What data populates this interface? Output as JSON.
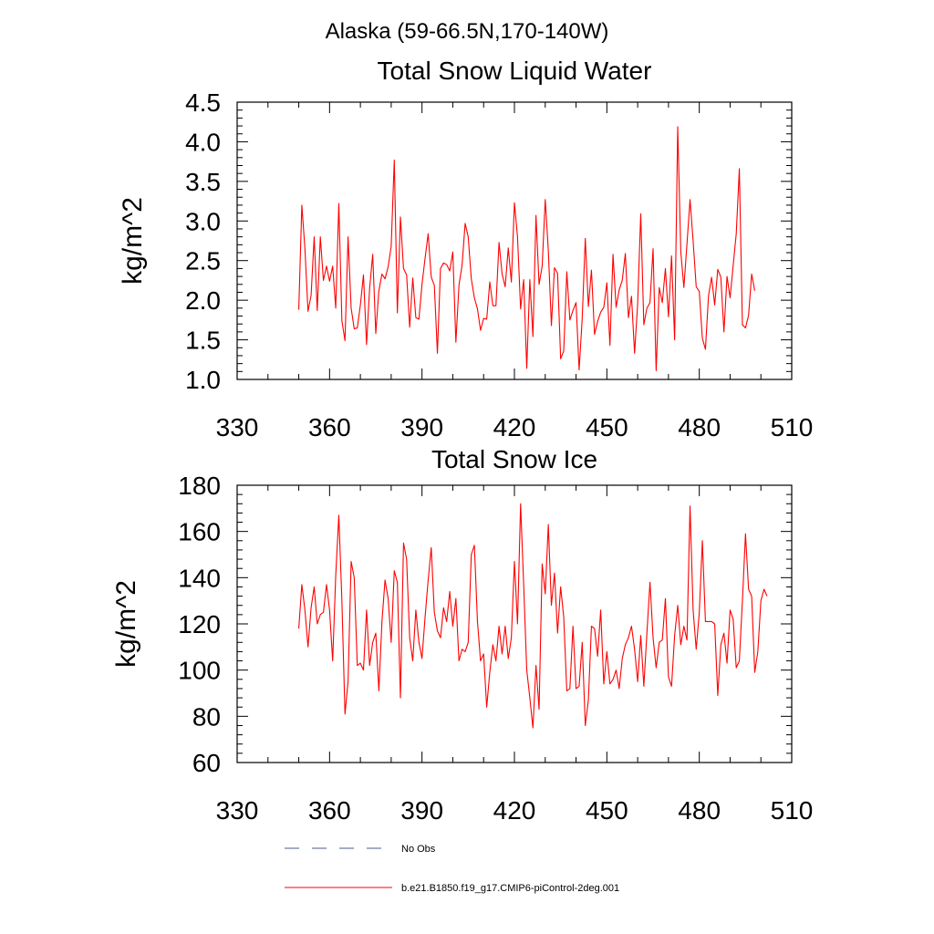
{
  "figure_title": "Alaska (59-66.5N,170-140W)",
  "chart_data": [
    {
      "type": "line",
      "title": "Total Snow Liquid Water",
      "xlabel": "",
      "ylabel": "kg/m^2",
      "xlim": [
        330,
        510
      ],
      "ylim": [
        1.0,
        4.5
      ],
      "xticks": [
        330,
        360,
        390,
        420,
        450,
        480,
        510
      ],
      "xtick_labels": [
        "330",
        "360",
        "390",
        "420",
        "450",
        "480",
        "510"
      ],
      "yticks": [
        1.0,
        1.5,
        2.0,
        2.5,
        3.0,
        3.5,
        4.0,
        4.5
      ],
      "ytick_labels": [
        "1.0",
        "1.5",
        "2.0",
        "2.5",
        "3.0",
        "3.5",
        "4.0",
        "4.5"
      ],
      "grid": false,
      "series": [
        {
          "name": "b.e21.B1850.f19_g17.CMIP6-piControl-2deg.001",
          "color": "#ff0000",
          "x_start": 350,
          "x_step": 1,
          "values": [
            1.88,
            3.2,
            2.65,
            1.86,
            2.06,
            2.8,
            1.87,
            2.8,
            2.25,
            2.43,
            2.24,
            2.43,
            1.9,
            3.22,
            1.74,
            1.49,
            2.8,
            1.9,
            1.64,
            1.65,
            1.94,
            2.32,
            1.44,
            2.15,
            2.58,
            1.58,
            2.12,
            2.33,
            2.27,
            2.42,
            2.68,
            3.77,
            1.84,
            3.05,
            2.4,
            2.32,
            1.66,
            2.28,
            1.78,
            1.76,
            2.2,
            2.53,
            2.84,
            2.29,
            2.19,
            1.33,
            2.4,
            2.47,
            2.45,
            2.37,
            2.61,
            1.47,
            2.19,
            2.44,
            2.97,
            2.8,
            2.27,
            2.03,
            1.89,
            1.62,
            1.77,
            1.76,
            2.23,
            1.93,
            1.93,
            2.73,
            2.33,
            2.17,
            2.66,
            2.23,
            3.23,
            2.8,
            1.89,
            2.26,
            1.14,
            2.26,
            1.54,
            3.07,
            2.2,
            2.43,
            3.27,
            2.63,
            1.68,
            2.41,
            2.34,
            1.26,
            1.36,
            2.36,
            1.75,
            1.87,
            1.97,
            1.12,
            1.77,
            2.78,
            1.92,
            2.38,
            1.57,
            1.73,
            1.85,
            1.91,
            2.22,
            1.43,
            2.58,
            1.91,
            2.13,
            2.25,
            2.59,
            1.78,
            2.05,
            1.33,
            1.96,
            3.09,
            1.69,
            1.9,
            1.97,
            2.65,
            1.11,
            2.16,
            1.97,
            2.4,
            1.79,
            2.56,
            1.5,
            4.19,
            2.61,
            2.16,
            2.71,
            3.27,
            2.75,
            2.17,
            2.11,
            1.52,
            1.38,
            2.06,
            2.29,
            1.94,
            2.39,
            2.29,
            1.6,
            2.3,
            2.03,
            2.44,
            2.84,
            3.66,
            1.69,
            1.65,
            1.81,
            2.33,
            2.12
          ]
        }
      ]
    },
    {
      "type": "line",
      "title": "Total Snow Ice",
      "xlabel": "",
      "ylabel": "kg/m^2",
      "xlim": [
        330,
        510
      ],
      "ylim": [
        60,
        180
      ],
      "xticks": [
        330,
        360,
        390,
        420,
        450,
        480,
        510
      ],
      "xtick_labels": [
        "330",
        "360",
        "390",
        "420",
        "450",
        "480",
        "510"
      ],
      "yticks": [
        60,
        80,
        100,
        120,
        140,
        160,
        180
      ],
      "ytick_labels": [
        "60",
        "80",
        "100",
        "120",
        "140",
        "160",
        "180"
      ],
      "grid": false,
      "series": [
        {
          "name": "b.e21.B1850.f19_g17.CMIP6-piControl-2deg.001",
          "color": "#ff0000",
          "x_start": 350,
          "x_step": 1,
          "values": [
            118,
            137,
            126,
            110,
            127,
            136,
            120,
            124,
            125,
            137,
            126,
            104,
            141,
            167,
            130,
            81,
            95,
            147,
            140,
            102,
            103,
            100,
            126,
            102,
            112,
            116,
            91,
            121,
            139,
            131,
            112,
            143,
            138,
            88,
            155,
            148,
            114,
            104,
            126,
            112,
            105,
            123,
            139,
            153,
            125,
            117,
            114,
            127,
            121,
            134,
            119,
            131,
            104,
            109,
            108,
            112,
            150,
            154,
            121,
            104,
            107,
            84,
            99,
            111,
            104,
            119,
            107,
            119,
            105,
            114,
            147,
            120,
            172,
            137,
            100,
            88,
            75,
            102,
            83,
            146,
            133,
            163,
            128,
            142,
            116,
            136,
            123,
            91,
            92,
            119,
            92,
            93,
            112,
            76,
            87,
            119,
            118,
            106,
            126,
            94,
            108,
            94,
            96,
            100,
            92,
            105,
            111,
            114,
            119,
            109,
            95,
            115,
            93,
            116,
            138,
            114,
            101,
            112,
            113,
            131,
            97,
            93,
            115,
            128,
            111,
            119,
            113,
            171,
            126,
            109,
            125,
            156,
            121,
            121,
            121,
            120,
            89,
            111,
            116,
            103,
            126,
            122,
            101,
            104,
            130,
            159,
            135,
            132,
            99,
            108,
            130,
            135,
            132
          ]
        }
      ]
    }
  ],
  "legend": {
    "entries": [
      {
        "label": "No Obs",
        "style": "dashed",
        "color": "#4a5c8a"
      },
      {
        "label": "b.e21.B1850.f19_g17.CMIP6-piControl-2deg.001",
        "style": "solid",
        "color": "#ff0000"
      }
    ]
  }
}
